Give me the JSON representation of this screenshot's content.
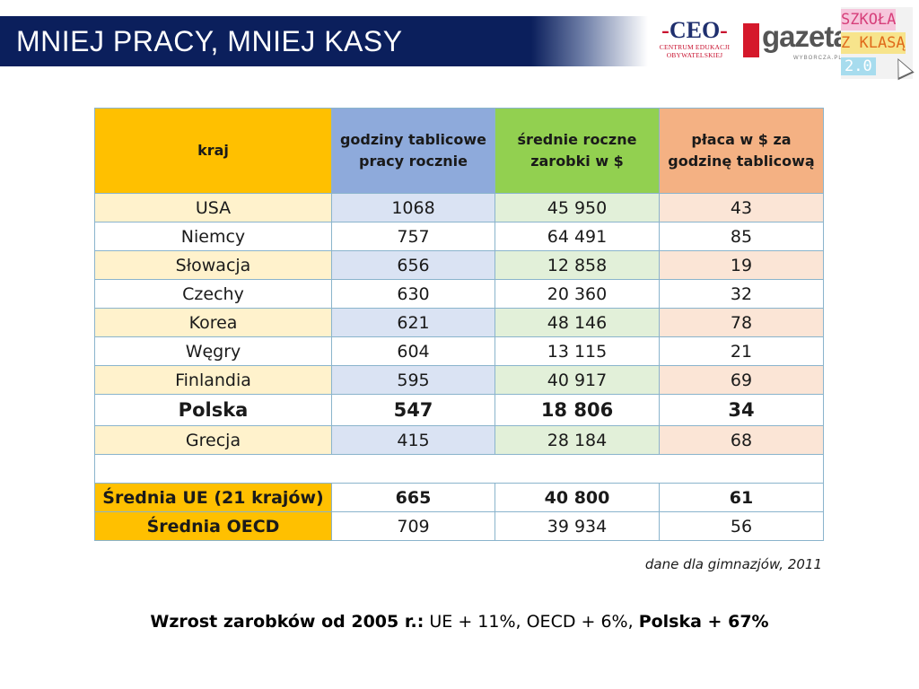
{
  "title": "MNIEJ PRACY, MNIEJ KASY",
  "logos": {
    "ceo_mark": "CEO",
    "ceo_sub_1": "CENTRUM EDUKACJI",
    "ceo_sub_2": "OBYWATELSKIEJ",
    "gazeta_word": "gazeta",
    "gazeta_sub": "WYBORCZA.PL",
    "szkola_row1": "SZKOŁA",
    "szkola_row2": "Z KLASĄ",
    "szkola_row3": "2.0"
  },
  "table": {
    "headers": [
      "kraj",
      "godziny tablicowe pracy rocznie",
      "średnie roczne zarobki w $",
      "płaca w $ za godzinę tablicową"
    ],
    "rows": [
      {
        "kraj": "USA",
        "godziny": "1068",
        "zarobki": "45 950",
        "placa": "43"
      },
      {
        "kraj": "Niemcy",
        "godziny": "757",
        "zarobki": "64 491",
        "placa": "85"
      },
      {
        "kraj": "Słowacja",
        "godziny": "656",
        "zarobki": "12 858",
        "placa": "19"
      },
      {
        "kraj": "Czechy",
        "godziny": "630",
        "zarobki": "20 360",
        "placa": "32"
      },
      {
        "kraj": "Korea",
        "godziny": "621",
        "zarobki": "48 146",
        "placa": "78"
      },
      {
        "kraj": "Węgry",
        "godziny": "604",
        "zarobki": "13 115",
        "placa": "21"
      },
      {
        "kraj": "Finlandia",
        "godziny": "595",
        "zarobki": "40 917",
        "placa": "69"
      },
      {
        "kraj": "Polska",
        "godziny": "547",
        "zarobki": "18 806",
        "placa": "34"
      },
      {
        "kraj": "Grecja",
        "godziny": "415",
        "zarobki": "28 184",
        "placa": "68"
      }
    ],
    "averages": [
      {
        "kraj": "Średnia UE (21 krajów)",
        "godziny": "665",
        "zarobki": "40 800",
        "placa": "61"
      },
      {
        "kraj": "Średnia OECD",
        "godziny": "709",
        "zarobki": "39 934",
        "placa": "56"
      }
    ]
  },
  "source": "dane dla gimnazjów, 2011",
  "footer": {
    "lead": "Wzrost zarobków od 2005 r.:",
    "middle": " UE + 11%, OECD + 6%, ",
    "tail": "Polska + 67%"
  }
}
